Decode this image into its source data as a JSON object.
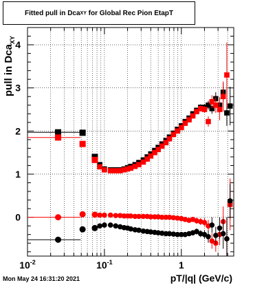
{
  "chart_data": {
    "type": "scatter",
    "title_main": "Fitted pull in Dca",
    "title_sub": "XY",
    "title_rest": " for Global Rec Pion EtapT",
    "ylabel_main": "pull in Dca",
    "ylabel_sub": "XY",
    "xlabel": "pT/|q| (GeV/c)",
    "xscale": "log",
    "xlim": [
      0.01,
      4.8
    ],
    "ylim": [
      -0.9,
      4.4
    ],
    "grid": true,
    "x_ticks": [
      {
        "value": 0.01,
        "base": "10",
        "exp": "-2"
      },
      {
        "value": 0.1,
        "base": "10",
        "exp": "-1"
      },
      {
        "value": 1,
        "base": "1",
        "exp": ""
      }
    ],
    "y_ticks": [
      0,
      1,
      2,
      3,
      4
    ],
    "first_bin": {
      "x_low": 0.01,
      "x_high": 0.049,
      "x_center": 0.025
    },
    "series": [
      {
        "color": "#000000",
        "marker": "square",
        "x": [
          0.025,
          0.052,
          0.075,
          0.087,
          0.1,
          0.12,
          0.14,
          0.16,
          0.18,
          0.2,
          0.22,
          0.25,
          0.28,
          0.32,
          0.36,
          0.4,
          0.45,
          0.5,
          0.56,
          0.63,
          0.7,
          0.79,
          0.89,
          1.0,
          1.12,
          1.26,
          1.41,
          1.58,
          1.78,
          2.0,
          2.24,
          2.5,
          2.8,
          3.15,
          3.5,
          3.9,
          4.3
        ],
        "y": [
          1.97,
          1.96,
          1.4,
          1.22,
          1.12,
          1.1,
          1.1,
          1.1,
          1.12,
          1.15,
          1.18,
          1.22,
          1.27,
          1.33,
          1.4,
          1.47,
          1.55,
          1.62,
          1.7,
          1.78,
          1.86,
          1.95,
          2.04,
          2.12,
          2.22,
          2.3,
          2.4,
          2.48,
          2.55,
          2.55,
          2.6,
          2.52,
          2.75,
          2.6,
          2.9,
          2.42,
          2.58
        ],
        "err_y": [
          0.05,
          0.05,
          0.05,
          0.04,
          0.03,
          0.02,
          0.02,
          0.02,
          0.02,
          0.02,
          0.02,
          0.02,
          0.02,
          0.02,
          0.02,
          0.02,
          0.02,
          0.02,
          0.02,
          0.02,
          0.02,
          0.02,
          0.03,
          0.03,
          0.03,
          0.04,
          0.05,
          0.06,
          0.07,
          0.08,
          0.1,
          0.12,
          0.15,
          0.18,
          0.22,
          0.3,
          0.45
        ]
      },
      {
        "color": "#ff0000",
        "marker": "square",
        "x": [
          0.025,
          0.052,
          0.075,
          0.087,
          0.1,
          0.12,
          0.14,
          0.16,
          0.18,
          0.2,
          0.22,
          0.25,
          0.28,
          0.32,
          0.36,
          0.4,
          0.45,
          0.5,
          0.56,
          0.63,
          0.7,
          0.79,
          0.89,
          1.0,
          1.12,
          1.26,
          1.41,
          1.58,
          1.78,
          2.0,
          2.24,
          2.5,
          2.8,
          3.15,
          3.5,
          3.9,
          4.3
        ],
        "y": [
          1.85,
          1.7,
          1.33,
          1.17,
          1.1,
          1.08,
          1.08,
          1.08,
          1.1,
          1.12,
          1.14,
          1.18,
          1.22,
          1.28,
          1.35,
          1.42,
          1.5,
          1.57,
          1.65,
          1.73,
          1.82,
          1.92,
          2.0,
          2.08,
          2.18,
          2.26,
          2.35,
          2.45,
          2.52,
          2.5,
          2.22,
          2.68,
          2.6,
          2.5,
          2.8,
          3.3,
          0.3
        ],
        "err_y": [
          0.05,
          0.05,
          0.05,
          0.04,
          0.03,
          0.02,
          0.02,
          0.02,
          0.02,
          0.02,
          0.02,
          0.02,
          0.02,
          0.02,
          0.02,
          0.02,
          0.02,
          0.02,
          0.02,
          0.02,
          0.02,
          0.02,
          0.03,
          0.03,
          0.03,
          0.04,
          0.05,
          0.06,
          0.07,
          0.08,
          0.12,
          0.15,
          0.18,
          0.25,
          0.35,
          0.75,
          0.6
        ]
      },
      {
        "color": "#ff0000",
        "marker": "circle",
        "x": [
          0.025,
          0.052,
          0.075,
          0.087,
          0.1,
          0.12,
          0.14,
          0.16,
          0.18,
          0.2,
          0.22,
          0.25,
          0.28,
          0.32,
          0.36,
          0.4,
          0.45,
          0.5,
          0.56,
          0.63,
          0.7,
          0.79,
          0.89,
          1.0,
          1.12,
          1.26,
          1.41,
          1.58,
          1.78,
          2.0,
          2.24,
          2.5,
          2.8,
          3.15,
          3.5,
          3.9,
          4.3
        ],
        "y": [
          0.0,
          0.07,
          0.06,
          0.05,
          0.05,
          0.05,
          0.04,
          0.04,
          0.03,
          0.03,
          0.03,
          0.02,
          0.02,
          0.02,
          0.02,
          0.01,
          0.01,
          0.01,
          0.0,
          0.0,
          0.0,
          -0.01,
          -0.02,
          -0.03,
          -0.05,
          -0.07,
          -0.05,
          -0.08,
          -0.1,
          -0.12,
          -0.2,
          -0.55,
          -0.6,
          -0.4,
          -0.1,
          -0.5,
          0.35
        ],
        "err_y": [
          0.06,
          0.05,
          0.05,
          0.04,
          0.03,
          0.02,
          0.02,
          0.02,
          0.02,
          0.02,
          0.02,
          0.02,
          0.02,
          0.02,
          0.02,
          0.02,
          0.02,
          0.02,
          0.02,
          0.02,
          0.02,
          0.02,
          0.03,
          0.03,
          0.04,
          0.05,
          0.06,
          0.07,
          0.08,
          0.1,
          0.14,
          0.18,
          0.2,
          0.25,
          0.35,
          0.5,
          0.4
        ]
      },
      {
        "color": "#000000",
        "marker": "circle",
        "x": [
          0.025,
          0.052,
          0.075,
          0.087,
          0.1,
          0.12,
          0.14,
          0.16,
          0.18,
          0.2,
          0.22,
          0.25,
          0.28,
          0.32,
          0.36,
          0.4,
          0.45,
          0.5,
          0.56,
          0.63,
          0.7,
          0.79,
          0.89,
          1.0,
          1.12,
          1.26,
          1.41,
          1.58,
          1.78,
          2.0,
          2.24,
          2.5,
          2.8,
          3.15,
          3.5,
          3.9,
          4.3
        ],
        "y": [
          -0.52,
          -0.28,
          -0.25,
          -0.2,
          -0.18,
          -0.18,
          -0.2,
          -0.22,
          -0.24,
          -0.25,
          -0.27,
          -0.29,
          -0.3,
          -0.32,
          -0.33,
          -0.34,
          -0.35,
          -0.36,
          -0.37,
          -0.38,
          -0.38,
          -0.39,
          -0.4,
          -0.4,
          -0.4,
          -0.38,
          -0.36,
          -0.33,
          -0.38,
          -0.4,
          -0.45,
          -0.18,
          -0.42,
          -0.25,
          -0.38,
          -0.5,
          0.38
        ],
        "err_y": [
          0.06,
          0.05,
          0.05,
          0.04,
          0.03,
          0.02,
          0.02,
          0.02,
          0.02,
          0.02,
          0.02,
          0.02,
          0.02,
          0.02,
          0.02,
          0.02,
          0.02,
          0.02,
          0.02,
          0.02,
          0.02,
          0.02,
          0.03,
          0.03,
          0.04,
          0.05,
          0.06,
          0.07,
          0.08,
          0.1,
          0.14,
          0.18,
          0.2,
          0.25,
          0.35,
          0.5,
          0.4
        ]
      }
    ]
  },
  "footer": {
    "datestamp": "Mon May 24 16:31:20 2021"
  }
}
